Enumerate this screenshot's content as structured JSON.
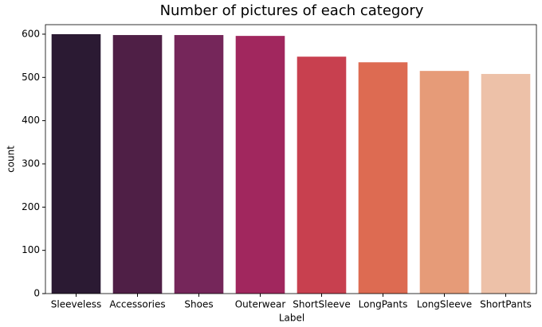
{
  "chart_data": {
    "type": "bar",
    "title": "Number of pictures of each category",
    "x_label": "Label",
    "y_label": "count",
    "categories": [
      "Sleeveless",
      "Accessories",
      "Shoes",
      "Outerwear",
      "ShortSleeve",
      "LongPants",
      "LongSleeve",
      "ShortPants"
    ],
    "values": [
      600,
      598,
      598,
      596,
      548,
      535,
      515,
      508
    ],
    "colors": [
      "#2b1a33",
      "#4f1f46",
      "#75265a",
      "#a1275e",
      "#c8404f",
      "#dd6b52",
      "#e69b78",
      "#edc1a8"
    ],
    "ylim": [
      0,
      622
    ],
    "yticks": [
      0,
      100,
      200,
      300,
      400,
      500,
      600
    ]
  }
}
